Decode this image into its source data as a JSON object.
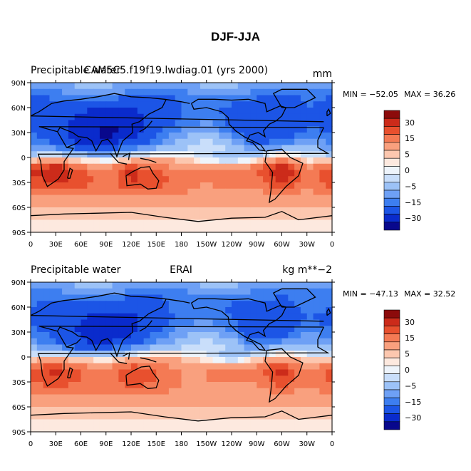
{
  "figure": {
    "title": "DJF-JJA"
  },
  "palette": [
    "#08088c",
    "#0a2bcc",
    "#1c55e6",
    "#3d7ef0",
    "#6ea0f5",
    "#9cc2f7",
    "#c9defa",
    "#eef4fb",
    "#fde9df",
    "#fcc7af",
    "#f9a07e",
    "#f47a54",
    "#e8502e",
    "#cc2b1a",
    "#8c0b0b"
  ],
  "colorbar": {
    "labels": [
      "30",
      "15",
      "5",
      "0",
      "−5",
      "−15",
      "−30"
    ]
  },
  "chart_data": [
    {
      "type": "heatmap",
      "title_left": "Precipitable water",
      "title_center": "CAM5C5.f19f19.lwdiag.01 (yrs 2000)",
      "title_right": "mm",
      "min_label": "MIN = −52.05",
      "max_label": "MAX =  36.26",
      "min": -52.05,
      "max": 36.26,
      "levels": [
        -40,
        -30,
        -20,
        -15,
        -10,
        -5,
        -2,
        0,
        2,
        5,
        10,
        15,
        20,
        30
      ],
      "xtick_labels": [
        "0",
        "30E",
        "60E",
        "90E",
        "120E",
        "150E",
        "180",
        "150W",
        "120W",
        "90W",
        "60W",
        "30W",
        "0"
      ],
      "ytick_labels": [
        "90N",
        "60N",
        "30N",
        "0",
        "30S",
        "60S",
        "90S"
      ],
      "xlim": [
        0,
        360
      ],
      "ylim": [
        -90,
        90
      ],
      "lat_rows": [
        {
          "lat": 90,
          "values": [
            -8,
            -8,
            -8,
            -8,
            -8,
            -8,
            -8,
            -8,
            -8,
            -8,
            -8,
            -8,
            -8
          ]
        },
        {
          "lat": 75,
          "values": [
            -20,
            -18,
            -15,
            -15,
            -18,
            -22,
            -18,
            -15,
            -15,
            -18,
            -22,
            -18,
            -20
          ]
        },
        {
          "lat": 60,
          "values": [
            -22,
            -25,
            -28,
            -30,
            -30,
            -25,
            -20,
            -18,
            -22,
            -25,
            -25,
            -20,
            -22
          ]
        },
        {
          "lat": 45,
          "values": [
            -25,
            -28,
            -32,
            -38,
            -35,
            -28,
            -20,
            -15,
            -22,
            -30,
            -30,
            -22,
            -25
          ]
        },
        {
          "lat": 30,
          "values": [
            -20,
            -25,
            -35,
            -45,
            -38,
            -22,
            -12,
            -8,
            -18,
            -30,
            -28,
            -18,
            -20
          ]
        },
        {
          "lat": 15,
          "values": [
            -15,
            -20,
            -30,
            -32,
            -22,
            -15,
            -8,
            -2,
            -5,
            -20,
            -15,
            -10,
            -15
          ]
        },
        {
          "lat": 0,
          "values": [
            -2,
            2,
            -2,
            -5,
            0,
            5,
            2,
            -5,
            -10,
            -2,
            8,
            -2,
            -2
          ]
        },
        {
          "lat": -15,
          "values": [
            20,
            28,
            15,
            10,
            22,
            15,
            10,
            12,
            15,
            15,
            30,
            12,
            20
          ]
        },
        {
          "lat": -30,
          "values": [
            18,
            20,
            18,
            12,
            20,
            18,
            12,
            10,
            12,
            12,
            20,
            12,
            18
          ]
        },
        {
          "lat": -45,
          "values": [
            10,
            10,
            10,
            10,
            10,
            10,
            10,
            8,
            8,
            8,
            10,
            8,
            10
          ]
        },
        {
          "lat": -60,
          "values": [
            5,
            5,
            5,
            5,
            5,
            5,
            5,
            5,
            5,
            5,
            5,
            5,
            5
          ]
        },
        {
          "lat": -75,
          "values": [
            2,
            2,
            2,
            2,
            2,
            2,
            2,
            2,
            2,
            2,
            2,
            2,
            2
          ]
        },
        {
          "lat": -90,
          "values": [
            1,
            1,
            1,
            1,
            1,
            1,
            1,
            1,
            1,
            1,
            1,
            1,
            1
          ]
        }
      ]
    },
    {
      "type": "heatmap",
      "title_left": "Precipitable water",
      "title_center": "ERAI",
      "title_right": "kg m**−2",
      "min_label": "MIN = −47.13",
      "max_label": "MAX =  32.52",
      "min": -47.13,
      "max": 32.52,
      "levels": [
        -40,
        -30,
        -20,
        -15,
        -10,
        -5,
        -2,
        0,
        2,
        5,
        10,
        15,
        20,
        30
      ],
      "xtick_labels": [
        "0",
        "30E",
        "60E",
        "90E",
        "120E",
        "150E",
        "180",
        "150W",
        "120W",
        "90W",
        "60W",
        "30W",
        "0"
      ],
      "ytick_labels": [
        "90N",
        "60N",
        "30N",
        "0",
        "30S",
        "60S",
        "90S"
      ],
      "xlim": [
        0,
        360
      ],
      "ylim": [
        -90,
        90
      ],
      "lat_rows": [
        {
          "lat": 90,
          "values": [
            -8,
            -8,
            -8,
            -8,
            -8,
            -8,
            -8,
            -8,
            -8,
            -8,
            -8,
            -8,
            -8
          ]
        },
        {
          "lat": 75,
          "values": [
            -18,
            -18,
            -15,
            -15,
            -18,
            -20,
            -18,
            -15,
            -15,
            -18,
            -20,
            -18,
            -18
          ]
        },
        {
          "lat": 60,
          "values": [
            -20,
            -22,
            -25,
            -28,
            -28,
            -22,
            -18,
            -18,
            -22,
            -22,
            -22,
            -18,
            -20
          ]
        },
        {
          "lat": 45,
          "values": [
            -22,
            -25,
            -30,
            -35,
            -32,
            -25,
            -18,
            -15,
            -20,
            -28,
            -28,
            -20,
            -22
          ]
        },
        {
          "lat": 30,
          "values": [
            -18,
            -22,
            -32,
            -42,
            -35,
            -20,
            -12,
            -8,
            -15,
            -28,
            -25,
            -15,
            -18
          ]
        },
        {
          "lat": 15,
          "values": [
            -12,
            -18,
            -28,
            -30,
            -20,
            -12,
            -8,
            -3,
            -5,
            -18,
            -12,
            -8,
            -12
          ]
        },
        {
          "lat": 0,
          "values": [
            0,
            2,
            0,
            -3,
            2,
            5,
            3,
            -2,
            -8,
            0,
            6,
            0,
            0
          ]
        },
        {
          "lat": -15,
          "values": [
            18,
            22,
            15,
            10,
            20,
            15,
            10,
            10,
            12,
            12,
            24,
            10,
            18
          ]
        },
        {
          "lat": -30,
          "values": [
            15,
            18,
            15,
            12,
            18,
            15,
            10,
            10,
            10,
            10,
            18,
            10,
            15
          ]
        },
        {
          "lat": -45,
          "values": [
            10,
            10,
            10,
            10,
            10,
            10,
            8,
            8,
            8,
            8,
            10,
            8,
            10
          ]
        },
        {
          "lat": -60,
          "values": [
            5,
            5,
            5,
            5,
            5,
            5,
            5,
            5,
            5,
            5,
            5,
            5,
            5
          ]
        },
        {
          "lat": -75,
          "values": [
            2,
            2,
            2,
            2,
            2,
            2,
            2,
            2,
            2,
            2,
            2,
            2,
            2
          ]
        },
        {
          "lat": -90,
          "values": [
            1,
            1,
            1,
            1,
            1,
            1,
            1,
            1,
            1,
            1,
            1,
            1,
            1
          ]
        }
      ]
    }
  ]
}
